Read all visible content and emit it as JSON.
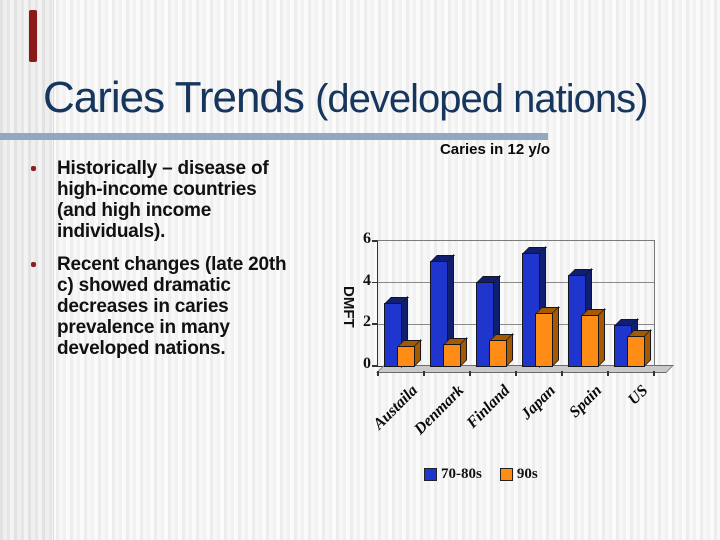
{
  "slide": {
    "title_main": "Caries Trends ",
    "title_paren": "(developed nations)",
    "bullets": [
      "Historically – disease of high-income countries (and high income  individuals).",
      "Recent changes (late 20th c)  showed dramatic decreases in caries prevalence in many developed nations."
    ]
  },
  "colors": {
    "title_navy": "#17365D",
    "title_rule": "#92A8BE",
    "bullet_marker": "#8B1F1F",
    "accent_bar": "#8B1A1A",
    "bar_blue": "#1E36CE",
    "bar_blue_dark": "#111F70",
    "bar_orange": "#FF8C14",
    "bar_orange_dark": "#A55A00"
  },
  "chart_data": {
    "type": "bar",
    "title": "Caries in 12 y/o",
    "ylabel": "DMFT",
    "xlabel": "",
    "categories": [
      "Austaila",
      "Denmark",
      "Finland",
      "Japan",
      "Spain",
      "US"
    ],
    "series": [
      {
        "name": "70-80s",
        "color": "#1E36CE",
        "dark": "#111F70",
        "values": [
          3.0,
          5.0,
          4.0,
          5.4,
          4.3,
          1.9
        ]
      },
      {
        "name": "90s",
        "color": "#FF8C14",
        "dark": "#A55A00",
        "values": [
          0.9,
          1.0,
          1.2,
          2.5,
          2.4,
          1.4
        ]
      }
    ],
    "ylim": [
      0,
      6
    ],
    "yticks": [
      0,
      2,
      4,
      6
    ],
    "grid": true,
    "legend_position": "bottom"
  }
}
